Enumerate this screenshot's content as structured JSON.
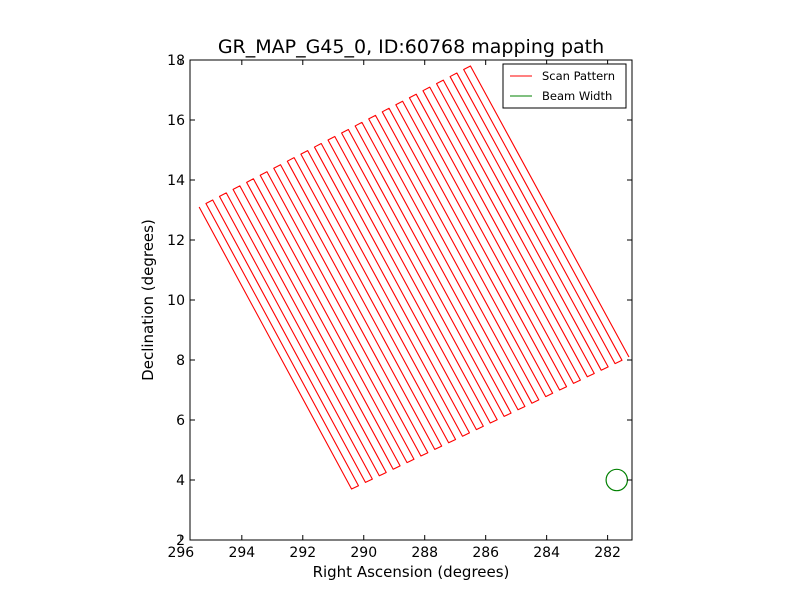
{
  "chart_data": {
    "type": "line",
    "title": "GR_MAP_G45_0, ID:60768 mapping path",
    "xlabel": "Right Ascension (degrees)",
    "ylabel": "Declination (degrees)",
    "xlim": [
      295.7,
      281.2
    ],
    "ylim": [
      2,
      18
    ],
    "x_inverted": true,
    "xticks": [
      296,
      294,
      292,
      290,
      288,
      286,
      284,
      282
    ],
    "xtick_labels": [
      "296",
      "294",
      "292",
      "290",
      "288",
      "286",
      "284",
      "282"
    ],
    "yticks": [
      2,
      4,
      6,
      8,
      10,
      12,
      14,
      16,
      18
    ],
    "ytick_labels": [
      "2",
      "4",
      "6",
      "8",
      "10",
      "12",
      "14",
      "16",
      "18"
    ],
    "grid": false,
    "legend_position": "top-right",
    "series": [
      {
        "name": "Scan Pattern",
        "color": "#ff0000",
        "scan": {
          "first_top": [
            295.4,
            13.1
          ],
          "first_bottom": [
            290.4,
            3.7
          ],
          "last_top": [
            286.5,
            17.8
          ],
          "last_bottom": [
            281.3,
            8.1
          ],
          "legs": 41,
          "turn_width": 0.28
        }
      },
      {
        "name": "Beam Width",
        "color": "#008000",
        "circle": {
          "center": [
            281.7,
            4.0
          ],
          "radius_deg": 0.35
        }
      }
    ]
  }
}
